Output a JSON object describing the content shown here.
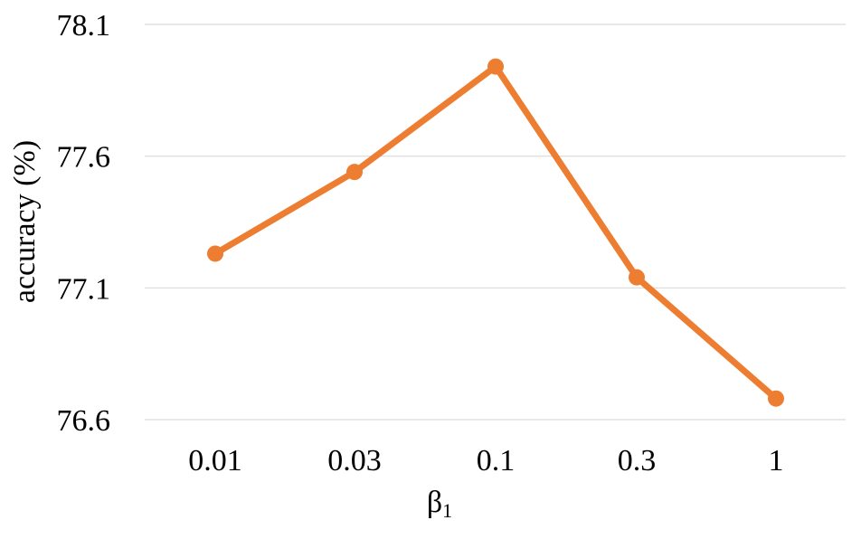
{
  "chart_data": {
    "type": "line",
    "title": "",
    "xlabel": "β1",
    "ylabel": "accuracy (%)",
    "categories": [
      "0.01",
      "0.03",
      "0.1",
      "0.3",
      "1"
    ],
    "series": [
      {
        "values": [
          77.23,
          77.54,
          77.94,
          77.14,
          76.68
        ],
        "color": "#ED7D31"
      }
    ],
    "yticks": [
      "76.6",
      "77.1",
      "77.6",
      "78.1"
    ],
    "ylim": [
      76.6,
      78.1
    ],
    "grid": true,
    "legend": "none"
  }
}
